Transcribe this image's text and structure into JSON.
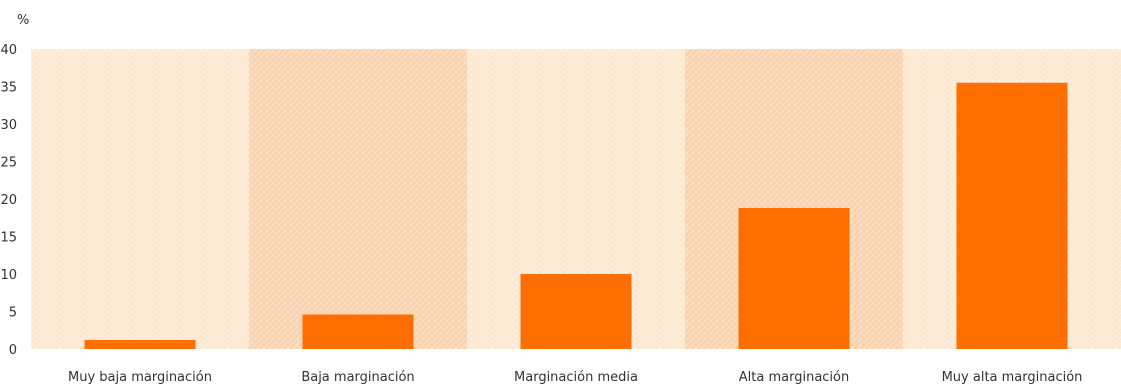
{
  "chart_data": {
    "type": "bar",
    "ylabel": "%",
    "ylim": [
      0,
      40
    ],
    "yticks": [
      "0",
      "5",
      "10",
      "15",
      "20",
      "25",
      "30",
      "35",
      "40"
    ],
    "categories": [
      "Muy baja marginación",
      "Baja marginación",
      "Marginación media",
      "Alta marginación",
      "Muy alta marginación"
    ],
    "values": [
      1.2,
      4.6,
      10.0,
      18.8,
      35.5
    ],
    "grid": false,
    "legend": "none",
    "colors": {
      "bar": "#ff6e00",
      "band_light": "#fde7cf",
      "band_dark": "#f9d2ae",
      "text": "#333333"
    }
  }
}
